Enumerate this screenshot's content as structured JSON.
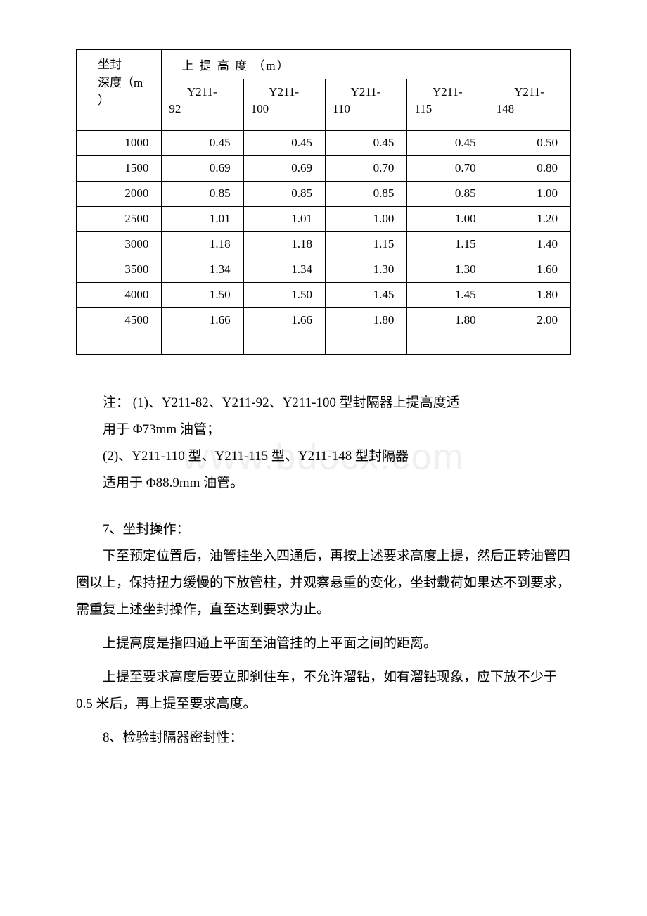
{
  "watermark": "www.bdocx.com",
  "table": {
    "header_left_line1": "坐封",
    "header_left_line2": "深度（m",
    "header_left_line3": "）",
    "header_right_top": "上 提 高 度 （m）",
    "columns": [
      {
        "prefix": "Y211-",
        "suffix": "92"
      },
      {
        "prefix": "Y211-",
        "suffix": "100"
      },
      {
        "prefix": "Y211-",
        "suffix": "110"
      },
      {
        "prefix": "Y211-",
        "suffix": "115"
      },
      {
        "prefix": "Y211-",
        "suffix": "148"
      }
    ],
    "rows": [
      {
        "d": "1000",
        "v": [
          "0.45",
          "0.45",
          "0.45",
          "0.45",
          "0.50"
        ]
      },
      {
        "d": "1500",
        "v": [
          "0.69",
          "0.69",
          "0.70",
          "0.70",
          "0.80"
        ]
      },
      {
        "d": "2000",
        "v": [
          "0.85",
          "0.85",
          "0.85",
          "0.85",
          "1.00"
        ]
      },
      {
        "d": "2500",
        "v": [
          "1.01",
          "1.01",
          "1.00",
          "1.00",
          "1.20"
        ]
      },
      {
        "d": "3000",
        "v": [
          "1.18",
          "1.18",
          "1.15",
          "1.15",
          "1.40"
        ]
      },
      {
        "d": "3500",
        "v": [
          "1.34",
          "1.34",
          "1.30",
          "1.30",
          "1.60"
        ]
      },
      {
        "d": "4000",
        "v": [
          "1.50",
          "1.50",
          "1.45",
          "1.45",
          "1.80"
        ]
      },
      {
        "d": "4500",
        "v": [
          "1.66",
          "1.66",
          "1.80",
          "1.80",
          "2.00"
        ]
      }
    ]
  },
  "text": {
    "note_line1": "注： (1)、Y211-82、Y211-92、Y211-100 型封隔器上提高度适",
    "note_line2": "用于 Φ73mm 油管；",
    "note_line3": "(2)、Y211-110 型、Y211-115 型、Y211-148 型封隔器",
    "note_line4": "适用于 Φ88.9mm 油管。",
    "sec7_title": "7、坐封操作：",
    "sec7_p1": "下至预定位置后，油管挂坐入四通后，再按上述要求高度上提，然后正转油管四圈以上，保持扭力缓慢的下放管柱，并观察悬重的变化，坐封载荷如果达不到要求，需重复上述坐封操作，直至达到要求为止。",
    "sec7_p2": "上提高度是指四通上平面至油管挂的上平面之间的距离。",
    "sec7_p3": "上提至要求高度后要立即刹住车，不允许溜钻，如有溜钻现象，应下放不少于 0.5 米后，再上提至要求高度。",
    "sec8_title": "8、检验封隔器密封性："
  }
}
